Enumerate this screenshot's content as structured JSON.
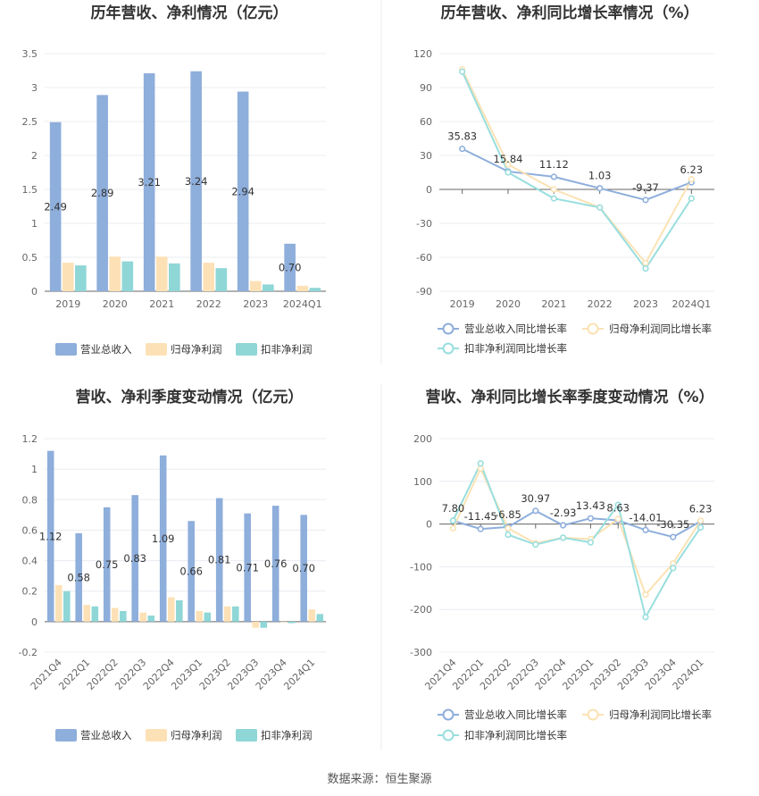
{
  "source": "数据来源：恒生聚源",
  "colors": {
    "revenue": "#8eaedb",
    "net_profit": "#fde1b6",
    "deducted": "#8fd6d6",
    "rev_line": "#8eaedb",
    "np_line": "#fbe2b4",
    "ded_line": "#99dede",
    "grid": "#e8ecf1",
    "axis": "#666666"
  },
  "chart_data": [
    {
      "type": "bar",
      "title": "历年营收、净利情况（亿元）",
      "categories": [
        "2019",
        "2020",
        "2021",
        "2022",
        "2023",
        "2024Q1"
      ],
      "ylim": [
        0,
        3.5
      ],
      "yticks": [
        "0",
        "0.5",
        "1",
        "1.5",
        "2",
        "2.5",
        "3",
        "3.5"
      ],
      "series": [
        {
          "name": "营业总收入",
          "values": [
            2.49,
            2.89,
            3.21,
            3.24,
            2.94,
            0.7
          ],
          "labels": [
            "2.49",
            "2.89",
            "3.21",
            "3.24",
            "2.94",
            "0.70"
          ]
        },
        {
          "name": "归母净利润",
          "values": [
            0.42,
            0.51,
            0.51,
            0.42,
            0.15,
            0.08
          ]
        },
        {
          "name": "扣非净利润",
          "values": [
            0.38,
            0.44,
            0.41,
            0.34,
            0.1,
            0.05
          ]
        }
      ]
    },
    {
      "type": "line",
      "title": "历年营收、净利同比增长率情况（%）",
      "categories": [
        "2019",
        "2020",
        "2021",
        "2022",
        "2023",
        "2024Q1"
      ],
      "ylim": [
        -90,
        120
      ],
      "yticks": [
        "-90",
        "-60",
        "-30",
        "0",
        "30",
        "60",
        "90",
        "120"
      ],
      "series": [
        {
          "name": "营业总收入同比增长率",
          "values": [
            35.83,
            15.84,
            11.12,
            1.03,
            -9.37,
            6.23
          ],
          "labels": [
            "35.83",
            "15.84",
            "11.12",
            "1.03",
            "-9.37",
            "6.23"
          ]
        },
        {
          "name": "归母净利润同比增长率",
          "values": [
            106,
            22,
            0,
            -16,
            -65,
            9
          ]
        },
        {
          "name": "扣非净利润同比增长率",
          "values": [
            104,
            15,
            -8,
            -16,
            -70,
            -8
          ]
        }
      ]
    },
    {
      "type": "bar",
      "title": "营收、净利季度变动情况（亿元）",
      "categories": [
        "2021Q4",
        "2022Q1",
        "2022Q2",
        "2022Q3",
        "2022Q4",
        "2023Q1",
        "2023Q2",
        "2023Q3",
        "2023Q4",
        "2024Q1"
      ],
      "ylim": [
        -0.2,
        1.2
      ],
      "yticks": [
        "-0.2",
        "0",
        "0.2",
        "0.4",
        "0.6",
        "0.8",
        "1",
        "1.2"
      ],
      "series": [
        {
          "name": "营业总收入",
          "values": [
            1.12,
            0.58,
            0.75,
            0.83,
            1.09,
            0.66,
            0.81,
            0.71,
            0.76,
            0.7
          ],
          "labels": [
            "1.12",
            "0.58",
            "0.75",
            "0.83",
            "1.09",
            "0.66",
            "0.81",
            "0.71",
            "0.76",
            "0.70"
          ]
        },
        {
          "name": "归母净利润",
          "values": [
            0.24,
            0.11,
            0.09,
            0.06,
            0.16,
            0.07,
            0.1,
            -0.04,
            0.0,
            0.08
          ]
        },
        {
          "name": "扣非净利润",
          "values": [
            0.2,
            0.1,
            0.07,
            0.04,
            0.14,
            0.06,
            0.1,
            -0.04,
            -0.01,
            0.05
          ]
        }
      ]
    },
    {
      "type": "line",
      "title": "营收、净利同比增长率季度变动情况（%）",
      "categories": [
        "2021Q4",
        "2022Q1",
        "2022Q2",
        "2022Q3",
        "2022Q4",
        "2023Q1",
        "2023Q2",
        "2023Q3",
        "2023Q4",
        "2024Q1"
      ],
      "ylim": [
        -300,
        200
      ],
      "yticks": [
        "-300",
        "-200",
        "-100",
        "0",
        "100",
        "200"
      ],
      "series": [
        {
          "name": "营业总收入同比增长率",
          "values": [
            7.8,
            -11.45,
            -6.85,
            30.97,
            -2.93,
            13.43,
            8.63,
            -14.01,
            -30.35,
            6.23
          ],
          "labels": [
            "7.80",
            "-11.45",
            "-6.85",
            "30.97",
            "-2.93",
            "13.43",
            "8.63",
            "-14.01",
            "-30.35",
            "6.23"
          ]
        },
        {
          "name": "归母净利润同比增长率",
          "values": [
            -10,
            130,
            -10,
            -45,
            -32,
            -35,
            12,
            -165,
            -92,
            8
          ]
        },
        {
          "name": "扣非净利润同比增长率",
          "values": [
            8,
            142,
            -25,
            -48,
            -32,
            -43,
            45,
            -218,
            -103,
            -8
          ]
        }
      ]
    }
  ]
}
